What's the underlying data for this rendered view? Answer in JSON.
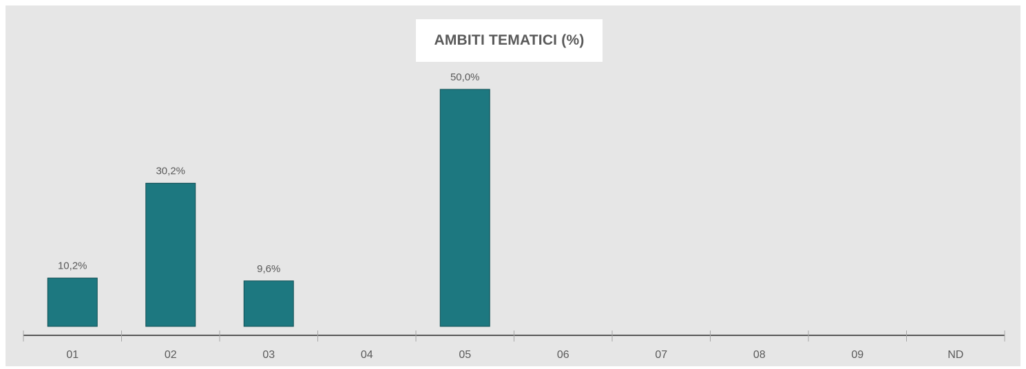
{
  "chart_data": {
    "type": "bar",
    "title": "AMBITI TEMATICI (%)",
    "categories": [
      "01",
      "02",
      "03",
      "04",
      "05",
      "06",
      "07",
      "08",
      "09",
      "ND"
    ],
    "values": [
      10.2,
      30.2,
      9.6,
      0,
      50.0,
      0,
      0,
      0,
      0,
      0
    ],
    "data_labels": [
      "10,2%",
      "30,2%",
      "9,6%",
      "",
      "50,0%",
      "",
      "",
      "",
      "",
      ""
    ],
    "ylim": [
      0,
      50
    ],
    "grid": false,
    "legend": "none",
    "colors": {
      "bar": "#1d7880",
      "bar_stroke": "#0e4d52",
      "background": "#e6e6e6",
      "axis": "#000000",
      "text": "#595959"
    }
  }
}
